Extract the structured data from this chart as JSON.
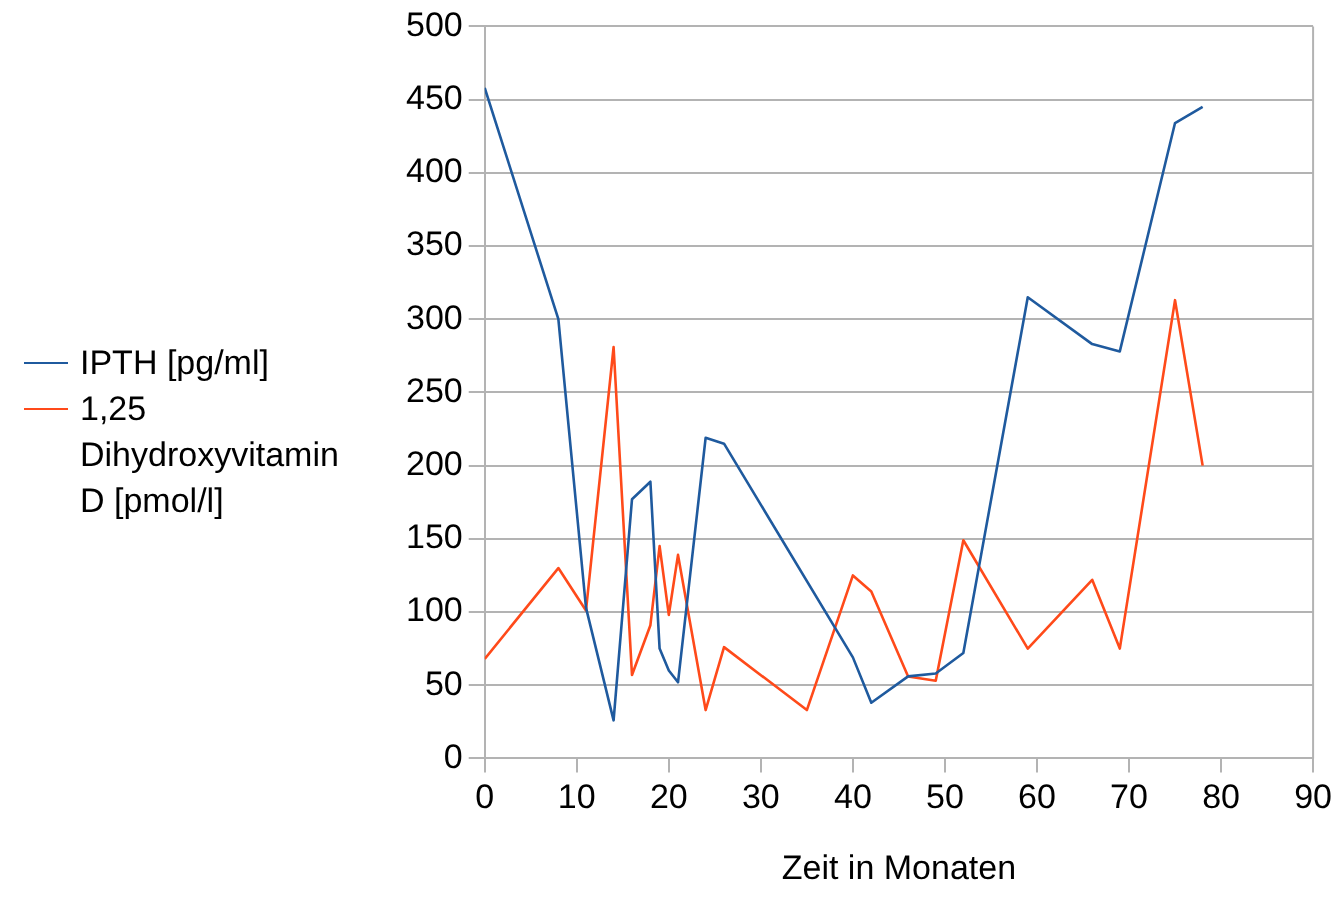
{
  "chart_data": {
    "type": "line",
    "xlabel": "Zeit in Monaten",
    "x": [
      0,
      8,
      11,
      14,
      16,
      18,
      19,
      20,
      21,
      24,
      26,
      35,
      40,
      42,
      46,
      49,
      52,
      59,
      66,
      69,
      75,
      78
    ],
    "series": [
      {
        "name": "IPTH [pg/ml]",
        "color": "#1f5a9e",
        "x": [
          0,
          8,
          11,
          14,
          16,
          18,
          19,
          20,
          21,
          24,
          26,
          40,
          42,
          46,
          49,
          52,
          59,
          66,
          69,
          75,
          78
        ],
        "values": [
          458,
          300,
          103,
          26,
          177,
          189,
          75,
          60,
          52,
          219,
          215,
          69,
          38,
          56,
          58,
          72,
          315,
          283,
          278,
          434,
          445
        ]
      },
      {
        "name": "1,25 Dihydroxyvitamin D [pmol/l]",
        "color": "#ff4a1a",
        "values": [
          68,
          130,
          101,
          281,
          57,
          91,
          145,
          98,
          139,
          33,
          76,
          33,
          125,
          114,
          56,
          53,
          149,
          75,
          122,
          75,
          313,
          200
        ]
      }
    ],
    "xlim": [
      0,
      90
    ],
    "xticks": [
      0,
      10,
      20,
      30,
      40,
      50,
      60,
      70,
      80,
      90
    ],
    "ylim": [
      0,
      500
    ],
    "yticks": [
      0,
      50,
      100,
      150,
      200,
      250,
      300,
      350,
      400,
      450,
      500
    ],
    "grid": "y",
    "legend": "left",
    "marker": "none",
    "line_style": "solid"
  }
}
